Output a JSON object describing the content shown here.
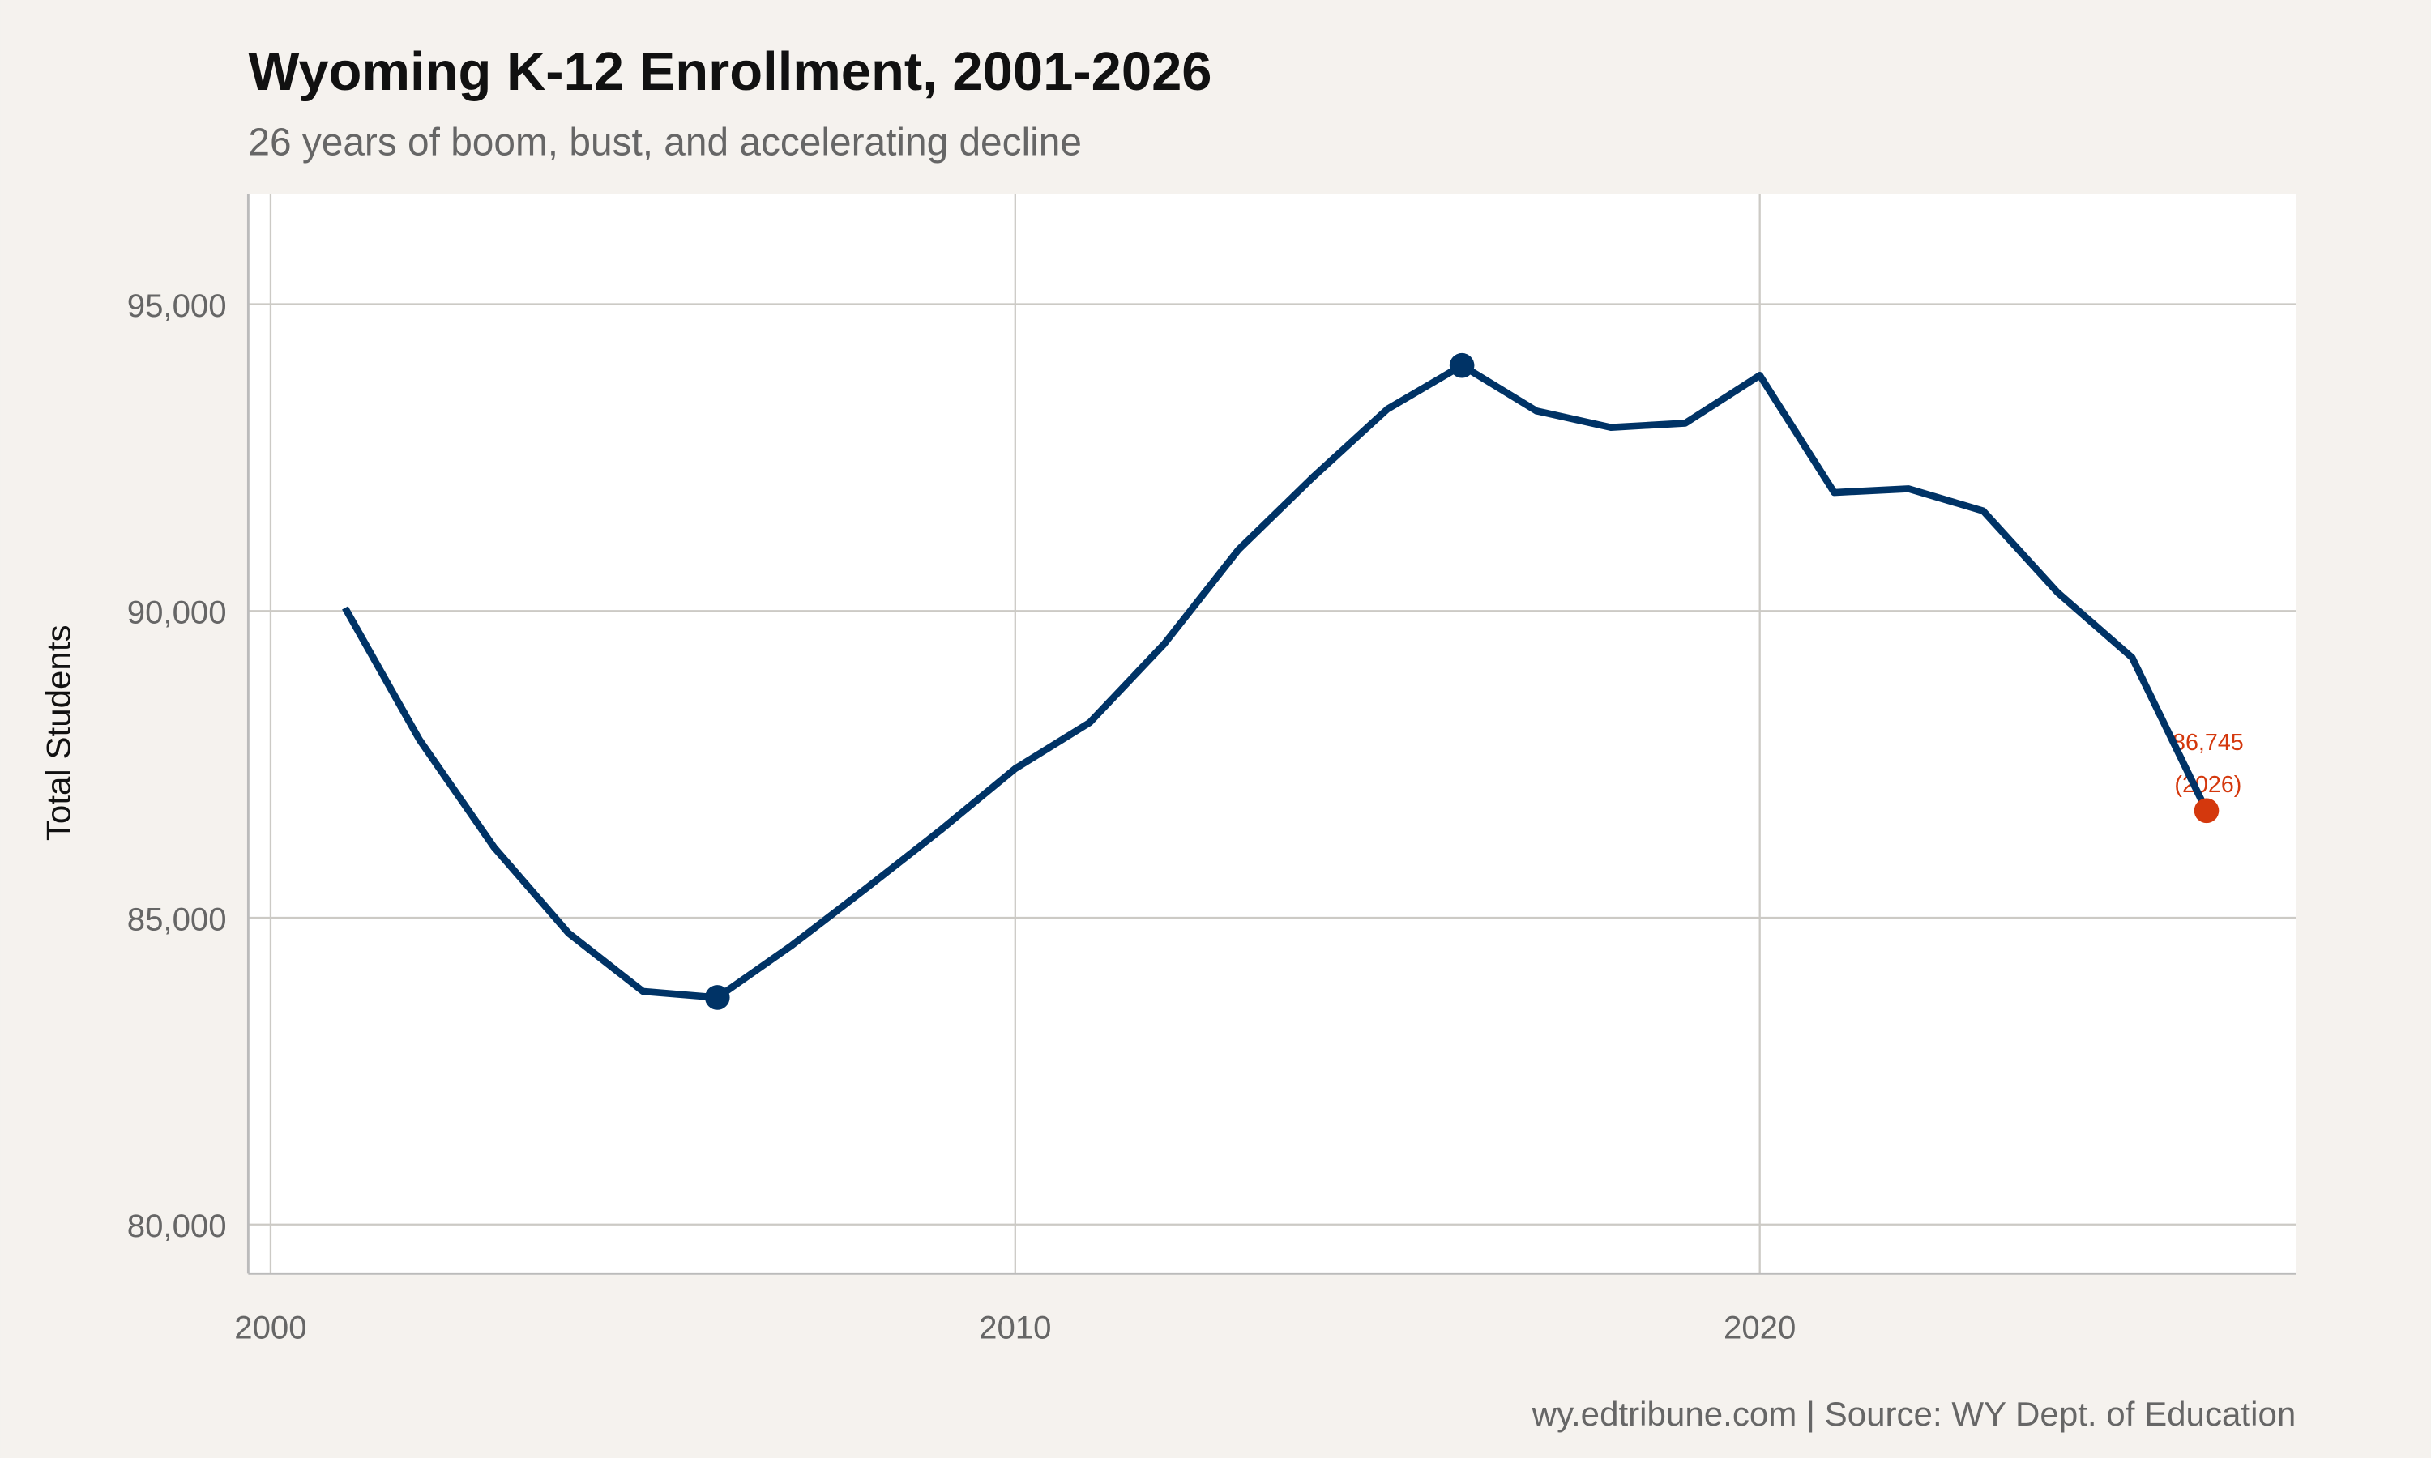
{
  "chart_data": {
    "type": "line",
    "title": "Wyoming K-12 Enrollment, 2001-2026",
    "subtitle": "26 years of boom, bust, and accelerating decline",
    "xlabel": "",
    "ylabel": "Total Students",
    "caption": "wy.edtribune.com | Source: WY Dept. of Education",
    "xlim": [
      1999.7,
      2027.2
    ],
    "ylim": [
      79200,
      96800
    ],
    "x_ticks": [
      2000,
      2010,
      2020
    ],
    "x_tick_labels": [
      "2000",
      "2010",
      "2020"
    ],
    "y_ticks": [
      80000,
      85000,
      90000,
      95000
    ],
    "y_tick_labels": [
      "80,000",
      "85,000",
      "90,000",
      "95,000"
    ],
    "grid": true,
    "x": [
      2001,
      2002,
      2003,
      2004,
      2005,
      2006,
      2007,
      2008,
      2009,
      2010,
      2011,
      2012,
      2013,
      2014,
      2015,
      2016,
      2017,
      2018,
      2019,
      2020,
      2021,
      2022,
      2023,
      2024,
      2025,
      2026
    ],
    "values": [
      90050,
      87900,
      86150,
      84750,
      83800,
      83700,
      84550,
      85480,
      86430,
      87430,
      88180,
      89460,
      91000,
      92180,
      93290,
      94000,
      93260,
      92990,
      93060,
      93840,
      91930,
      91990,
      91630,
      90300,
      89240,
      86745
    ],
    "highlight_points": [
      {
        "x": 2006,
        "y": 83700,
        "color": "#003366"
      },
      {
        "x": 2016,
        "y": 94000,
        "color": "#003366"
      },
      {
        "x": 2026,
        "y": 86745,
        "color": "#d4380d"
      }
    ],
    "annotation": {
      "x": 2026,
      "y": 86745,
      "line1": "86,745",
      "line2": "(2026)"
    },
    "colors": {
      "line": "#003366",
      "accent": "#d4380d",
      "background": "#f5f2ee",
      "panel": "#ffffff",
      "grid": "#cccac5"
    }
  }
}
